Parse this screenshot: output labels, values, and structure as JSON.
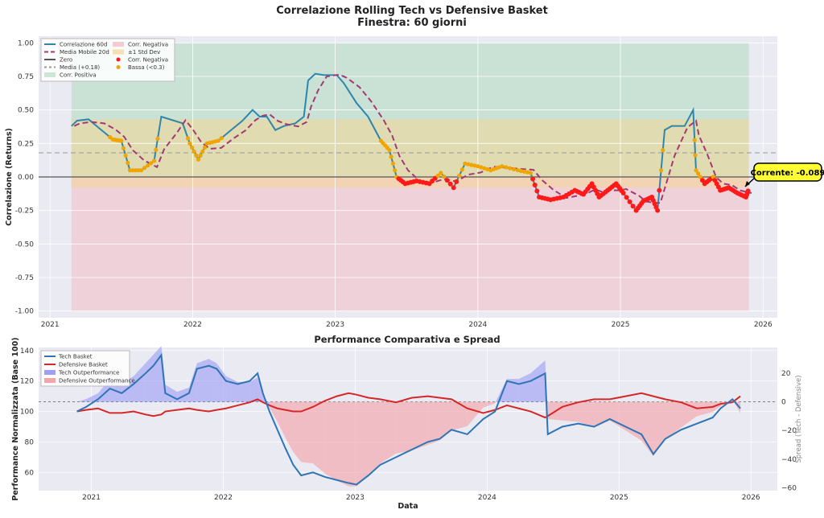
{
  "figure": {
    "title": "Correlazione Rolling Tech vs Defensive Basket",
    "subtitle": "Finestra: 60 giorni"
  },
  "chart_data": [
    {
      "type": "line",
      "ylabel": "Correlazione (Returns)",
      "xlabel": "",
      "ylim": [
        -1.05,
        1.05
      ],
      "xlim": [
        2020.92,
        2026.1
      ],
      "yticks": [
        "1.00",
        "0.75",
        "0.50",
        "0.25",
        "0.00",
        "-0.25",
        "-0.50",
        "-0.75",
        "-1.00"
      ],
      "ytick_values": [
        1,
        0.75,
        0.5,
        0.25,
        0,
        -0.25,
        -0.5,
        -0.75,
        -1
      ],
      "xticks": [
        "2021",
        "2022",
        "2023",
        "2024",
        "2025",
        "2026"
      ],
      "xtick_values": [
        2021,
        2022,
        2023,
        2024,
        2025,
        2026
      ],
      "grid": true,
      "legend_position": "top-left",
      "legend": [
        "Correlazione 60d",
        "Media Mobile 20d",
        "Zero",
        "Media (+0.18)",
        "Corr. Positiva",
        "Corr. Negativa",
        "±1 Std Dev",
        "Corr. Negativa",
        "Bassa (<0.3)"
      ],
      "mean": 0.18,
      "std_band": [
        -0.08,
        0.43
      ],
      "positive_zone": [
        0,
        1
      ],
      "negative_zone": [
        -1,
        0
      ],
      "low_threshold": 0.3,
      "colors": {
        "corr": "#2e86ab",
        "ma": "#a23b72",
        "zero": "#555555",
        "mean": "#999999",
        "pos": "#b9dcc4",
        "neg": "#f3b7c1",
        "band": "#f5d58e",
        "neg_dot": "#ff1a1a",
        "low_dot": "#f0a500"
      },
      "x": [
        2021.15,
        2021.19,
        2021.27,
        2021.36,
        2021.44,
        2021.5,
        2021.56,
        2021.64,
        2021.73,
        2021.78,
        2021.87,
        2021.93,
        2021.98,
        2022.04,
        2022.1,
        2022.18,
        2022.27,
        2022.35,
        2022.42,
        2022.47,
        2022.52,
        2022.58,
        2022.64,
        2022.72,
        2022.78,
        2022.81,
        2022.86,
        2022.92,
        2023.01,
        2023.06,
        2023.15,
        2023.23,
        2023.32,
        2023.38,
        2023.43,
        2023.49,
        2023.57,
        2023.66,
        2023.74,
        2023.83,
        2023.91,
        2024.0,
        2024.09,
        2024.17,
        2024.28,
        2024.37,
        2024.43,
        2024.51,
        2024.6,
        2024.68,
        2024.74,
        2024.8,
        2024.85,
        2024.91,
        2024.97,
        2025.02,
        2025.11,
        2025.16,
        2025.22,
        2025.26,
        2025.31,
        2025.36,
        2025.45,
        2025.51,
        2025.53,
        2025.59,
        2025.65,
        2025.7,
        2025.76,
        2025.82,
        2025.88,
        2025.9
      ],
      "series": [
        {
          "name": "Correlazione 60d",
          "values": [
            0.38,
            0.42,
            0.43,
            0.35,
            0.28,
            0.27,
            0.05,
            0.05,
            0.12,
            0.45,
            0.42,
            0.4,
            0.25,
            0.13,
            0.25,
            0.27,
            0.35,
            0.42,
            0.5,
            0.45,
            0.45,
            0.35,
            0.38,
            0.4,
            0.45,
            0.72,
            0.77,
            0.76,
            0.76,
            0.7,
            0.55,
            0.45,
            0.27,
            0.2,
            0.0,
            -0.05,
            -0.03,
            -0.05,
            0.03,
            -0.08,
            0.1,
            0.08,
            0.05,
            0.08,
            0.05,
            0.03,
            -0.15,
            -0.17,
            -0.15,
            -0.1,
            -0.13,
            -0.05,
            -0.15,
            -0.1,
            -0.05,
            -0.12,
            -0.25,
            -0.18,
            -0.15,
            -0.25,
            0.35,
            0.38,
            0.38,
            0.5,
            0.05,
            -0.05,
            0.0,
            -0.1,
            -0.08,
            -0.12,
            -0.15,
            -0.089
          ]
        }
      ],
      "annotation": {
        "label": "Corrente: -0.089",
        "value": -0.089,
        "color": "#ffff33"
      }
    },
    {
      "type": "line",
      "title": "Performance Comparativa e Spread",
      "xlabel": "Data",
      "ylabel": "Performance Normalizzata (Base 100)",
      "y2label": "Spread (Tech - Defensive)",
      "ylim": [
        48,
        142
      ],
      "y2lim": [
        -62,
        38
      ],
      "xlim": [
        2020.6,
        2026.2
      ],
      "yticks": [
        "140",
        "120",
        "100",
        "80",
        "60"
      ],
      "ytick_values": [
        140,
        120,
        100,
        80,
        60
      ],
      "y2ticks": [
        "20",
        "0",
        "−20",
        "−40",
        "−60"
      ],
      "y2tick_values": [
        20,
        0,
        -20,
        -40,
        -60
      ],
      "xticks": [
        "2021",
        "2022",
        "2023",
        "2024",
        "2025",
        "2026"
      ],
      "xtick_values": [
        2021,
        2022,
        2023,
        2024,
        2025,
        2026
      ],
      "grid": true,
      "legend_position": "top-left",
      "legend": [
        "Tech Basket",
        "Defensive Basket",
        "Tech Outperformance",
        "Defensive Outperformance"
      ],
      "colors": {
        "tech": "#2e75b6",
        "def": "#d62728",
        "tech_fill": "#9f9ff5",
        "def_fill": "#f4a5aa"
      },
      "x": [
        2020.89,
        2020.96,
        2021.05,
        2021.14,
        2021.23,
        2021.32,
        2021.41,
        2021.47,
        2021.53,
        2021.56,
        2021.65,
        2021.74,
        2021.8,
        2021.89,
        2021.95,
        2022.02,
        2022.11,
        2022.2,
        2022.26,
        2022.3,
        2022.35,
        2022.41,
        2022.47,
        2022.53,
        2022.59,
        2022.68,
        2022.77,
        2022.86,
        2022.95,
        2023.01,
        2023.1,
        2023.19,
        2023.31,
        2023.43,
        2023.55,
        2023.64,
        2023.73,
        2023.85,
        2023.97,
        2024.06,
        2024.15,
        2024.24,
        2024.33,
        2024.44,
        2024.46,
        2024.57,
        2024.69,
        2024.81,
        2024.93,
        2025.05,
        2025.17,
        2025.26,
        2025.35,
        2025.47,
        2025.59,
        2025.71,
        2025.77,
        2025.86,
        2025.92
      ],
      "series": [
        {
          "name": "Tech Basket",
          "values": [
            100,
            103,
            108,
            115,
            112,
            118,
            125,
            130,
            137,
            112,
            108,
            112,
            128,
            130,
            128,
            120,
            118,
            120,
            125,
            112,
            100,
            88,
            76,
            65,
            58,
            60,
            57,
            55,
            53,
            52,
            58,
            65,
            70,
            75,
            80,
            82,
            88,
            85,
            95,
            100,
            120,
            118,
            120,
            125,
            85,
            90,
            92,
            90,
            95,
            90,
            85,
            72,
            82,
            88,
            92,
            96,
            102,
            108,
            102
          ]
        },
        {
          "name": "Defensive Basket",
          "values": [
            100,
            101,
            102,
            99,
            99,
            100,
            98,
            97,
            98,
            100,
            101,
            102,
            101,
            100,
            101,
            102,
            104,
            106,
            108,
            106,
            104,
            102,
            101,
            100,
            100,
            103,
            107,
            110,
            112,
            111,
            109,
            108,
            106,
            109,
            110,
            109,
            108,
            102,
            99,
            101,
            104,
            102,
            100,
            96,
            97,
            103,
            106,
            108,
            108,
            110,
            112,
            110,
            108,
            106,
            102,
            103,
            105,
            106,
            110
          ]
        }
      ]
    }
  ]
}
